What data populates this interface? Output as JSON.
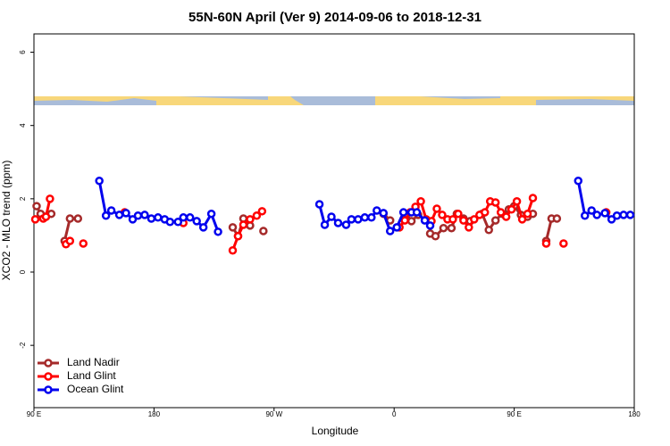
{
  "chart_data": {
    "type": "line",
    "title": "55N-60N April (Ver 9)   2014-09-06 to 2018-12-31",
    "x_label": "Longitude",
    "y_label": "XCO2 - MLO trend (ppm)",
    "xlim": [
      90,
      540
    ],
    "ylim": [
      -3.7,
      6.5
    ],
    "xticks": [
      {
        "value": 90,
        "label": "90 E"
      },
      180,
      {
        "value": 270,
        "label": "90 W"
      },
      {
        "value": 360,
        "label": "0"
      },
      {
        "value": 450,
        "label": "90 E"
      },
      {
        "value": 540,
        "label": "180"
      }
    ],
    "yticks": [
      -2,
      0,
      2,
      4,
      6
    ],
    "legend": "bottom-left",
    "series": [
      {
        "name": "Land Nadir",
        "color": "#a52a2a",
        "x": [
          92,
          95,
          103,
          null,
          113,
          117,
          123,
          null,
          239,
          243,
          247,
          252,
          null,
          262,
          null,
          352,
          357,
          null,
          369,
          373,
          378,
          null,
          387,
          391,
          397,
          403,
          407,
          412,
          417,
          null,
          426,
          431,
          436,
          441,
          446,
          450,
          455,
          460,
          464,
          null,
          474,
          478,
          482
        ],
        "values": [
          1.8,
          1.59,
          1.59,
          null,
          0.85,
          1.46,
          1.46,
          null,
          1.22,
          0.98,
          1.46,
          1.27,
          null,
          1.12,
          null,
          1.59,
          1.41,
          null,
          1.59,
          1.39,
          1.56,
          null,
          1.05,
          0.98,
          1.2,
          1.2,
          1.59,
          1.46,
          1.39,
          null,
          1.59,
          1.15,
          1.41,
          1.59,
          1.71,
          1.8,
          1.56,
          1.51,
          1.59,
          null,
          0.85,
          1.46,
          1.46
        ]
      },
      {
        "name": "Land Glint",
        "color": "#ff0000",
        "x": [
          91,
          97,
          99,
          102,
          null,
          114,
          117,
          null,
          127,
          null,
          158,
          null,
          202,
          null,
          239,
          243,
          247,
          252,
          257,
          261,
          null,
          364,
          368,
          372,
          376,
          380,
          384,
          388,
          392,
          396,
          400,
          404,
          408,
          412,
          416,
          420,
          424,
          428,
          432,
          436,
          440,
          444,
          448,
          452,
          456,
          460,
          464,
          null,
          474,
          null,
          487,
          null,
          519
        ],
        "values": [
          1.44,
          1.46,
          1.51,
          2.0,
          null,
          0.76,
          0.85,
          null,
          0.78,
          null,
          1.63,
          null,
          1.34,
          null,
          0.59,
          0.98,
          1.29,
          1.44,
          1.54,
          1.66,
          null,
          1.22,
          1.41,
          1.63,
          1.78,
          1.93,
          1.44,
          1.39,
          1.73,
          1.56,
          1.44,
          1.44,
          1.59,
          1.41,
          1.22,
          1.44,
          1.56,
          1.63,
          1.93,
          1.9,
          1.63,
          1.51,
          1.71,
          1.93,
          1.44,
          1.59,
          2.02,
          null,
          0.78,
          null,
          0.78,
          null,
          1.63
        ]
      },
      {
        "name": "Ocean Glint",
        "color": "#0000ee",
        "x": [
          139,
          144,
          148,
          154,
          159,
          164,
          168,
          173,
          178,
          183,
          188,
          192,
          198,
          202,
          207,
          212,
          217,
          223,
          228,
          null,
          304,
          308,
          313,
          318,
          324,
          328,
          333,
          338,
          343,
          347,
          352,
          357,
          362,
          367,
          373,
          377,
          383,
          387,
          null,
          498,
          503,
          508,
          512,
          518,
          523,
          527,
          532,
          537
        ],
        "values": [
          2.49,
          1.54,
          1.68,
          1.56,
          1.61,
          1.44,
          1.54,
          1.56,
          1.46,
          1.49,
          1.44,
          1.37,
          1.37,
          1.49,
          1.49,
          1.39,
          1.22,
          1.59,
          1.1,
          null,
          1.85,
          1.29,
          1.51,
          1.34,
          1.29,
          1.44,
          1.44,
          1.49,
          1.49,
          1.68,
          1.61,
          1.12,
          1.22,
          1.63,
          1.63,
          1.63,
          1.41,
          1.27,
          null,
          2.49,
          1.54,
          1.68,
          1.56,
          1.61,
          1.44,
          1.54,
          1.56,
          1.56
        ]
      }
    ]
  }
}
